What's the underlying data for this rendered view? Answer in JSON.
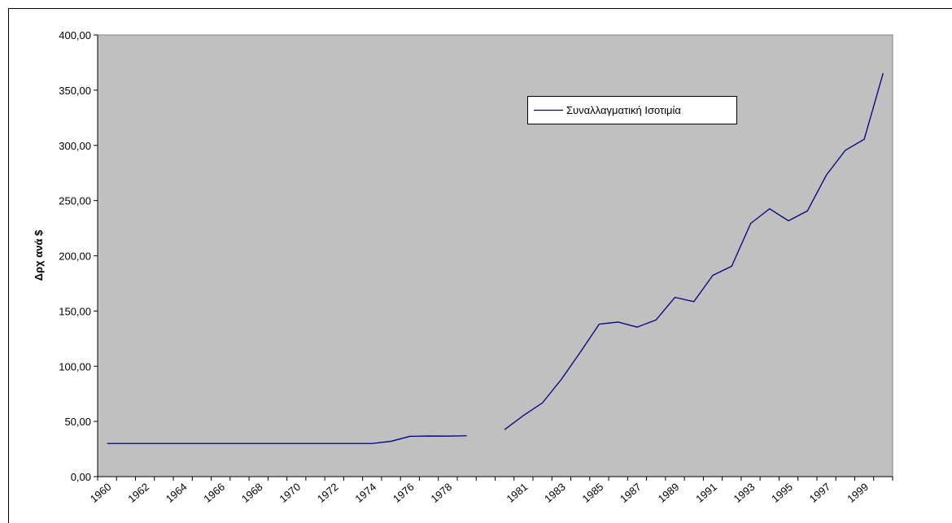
{
  "chart_data": {
    "type": "line",
    "y_label": "Δρχ ανά $",
    "categories": [
      "1960",
      null,
      "1962",
      null,
      "1964",
      null,
      "1966",
      null,
      "1968",
      null,
      "1970",
      null,
      "1972",
      null,
      "1974",
      null,
      "1976",
      null,
      "1978",
      null,
      null,
      null,
      "1981",
      null,
      "1983",
      null,
      "1985",
      null,
      "1987",
      null,
      "1989",
      null,
      "1991",
      null,
      "1993",
      null,
      "1995",
      null,
      "1997",
      null,
      "1999",
      null
    ],
    "series": [
      {
        "name": "Συναλλαγματική Ισοτιμία",
        "color": "#000080",
        "values": [
          30,
          30,
          30,
          30,
          30,
          30,
          30,
          30,
          30,
          30,
          30,
          30,
          30,
          30,
          30,
          32,
          36.5,
          36.8,
          36.7,
          37,
          null,
          42.6,
          55.4,
          66.8,
          88.1,
          112.7,
          138.1,
          140,
          135.4,
          141.9,
          162.4,
          158.5,
          182.3,
          190.6,
          229.3,
          242.6,
          231.7,
          240.7,
          273.1,
          295.5,
          305.6,
          365.4
        ]
      }
    ],
    "ylim": [
      0,
      400
    ],
    "yticks": [
      {
        "value": 0,
        "label": "0,00"
      },
      {
        "value": 50,
        "label": "50,00"
      },
      {
        "value": 100,
        "label": "100,00"
      },
      {
        "value": 150,
        "label": "150,00"
      },
      {
        "value": 200,
        "label": "200,00"
      },
      {
        "value": 250,
        "label": "250,00"
      },
      {
        "value": 300,
        "label": "300,00"
      },
      {
        "value": 350,
        "label": "350,00"
      },
      {
        "value": 400,
        "label": "400,00"
      }
    ],
    "plot_background": "#c0c0c0"
  }
}
